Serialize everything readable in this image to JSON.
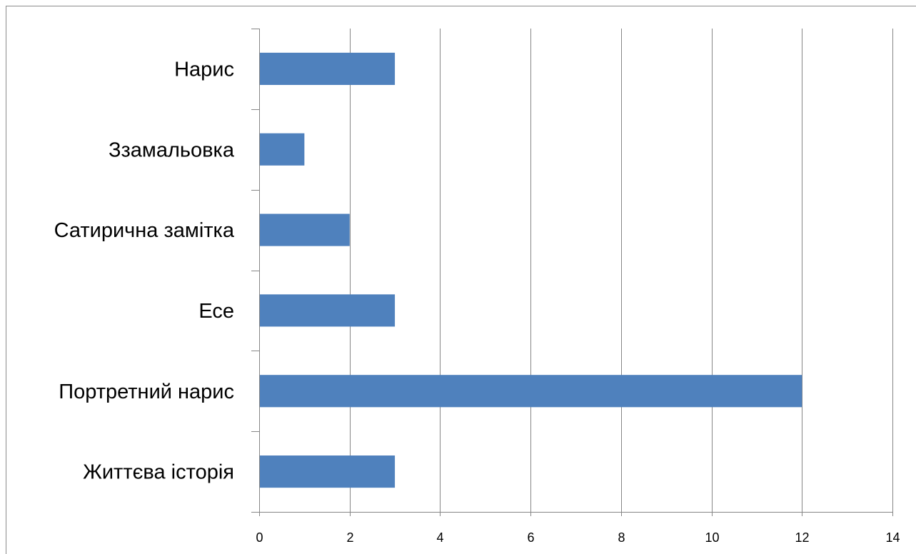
{
  "chart_data": {
    "type": "bar",
    "orientation": "horizontal",
    "categories": [
      "Життєва історія",
      "Портретний нарис",
      "Есе",
      "Сатирична замітка",
      "Ззамальовка",
      "Нарис"
    ],
    "values": [
      3,
      12,
      3,
      2,
      1,
      3
    ],
    "xlim": [
      0,
      14
    ],
    "x_ticks": [
      0,
      2,
      4,
      6,
      8,
      10,
      12,
      14
    ],
    "title": "",
    "xlabel": "",
    "ylabel": "",
    "grid": "vertical major gridlines",
    "legend": "none",
    "bar_color": "#4f81bd",
    "grid_color": "#868686"
  }
}
